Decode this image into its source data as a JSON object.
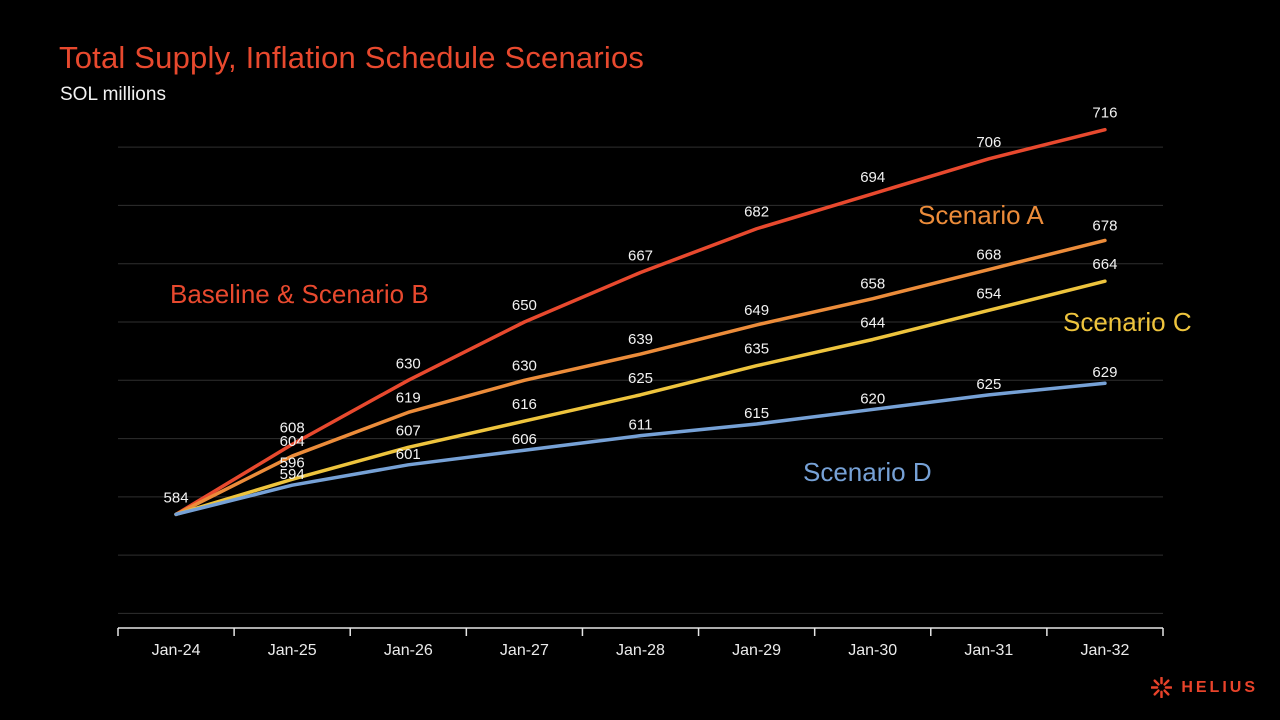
{
  "header": {
    "title": "Total Supply, Inflation Schedule Scenarios",
    "subtitle": "SOL millions"
  },
  "chart_data": {
    "type": "line",
    "title": "Total Supply, Inflation Schedule Scenarios",
    "xlabel": "",
    "ylabel": "SOL millions",
    "categories": [
      "Jan-24",
      "Jan-25",
      "Jan-26",
      "Jan-27",
      "Jan-28",
      "Jan-29",
      "Jan-30",
      "Jan-31",
      "Jan-32"
    ],
    "series": [
      {
        "name": "Baseline & Scenario B",
        "color": "#e8492e",
        "skip_first_label": false,
        "label_dy": -12,
        "values": [
          584,
          608,
          630,
          650,
          667,
          682,
          694,
          706,
          716
        ]
      },
      {
        "name": "Scenario A",
        "color": "#ec8c3a",
        "skip_first_label": true,
        "label_dy": -10,
        "values": [
          584,
          604,
          619,
          630,
          639,
          649,
          658,
          668,
          678
        ]
      },
      {
        "name": "Scenario C",
        "color": "#eec43d",
        "skip_first_label": true,
        "label_dy": -12,
        "values": [
          584,
          596,
          607,
          616,
          625,
          635,
          644,
          654,
          664
        ]
      },
      {
        "name": "Scenario D",
        "color": "#76a1d6",
        "skip_first_label": true,
        "label_dy": -6,
        "values": [
          584,
          594,
          601,
          606,
          611,
          615,
          620,
          625,
          629
        ]
      }
    ],
    "ylim": [
      545,
      720
    ],
    "gridline_values": [
      550,
      570,
      590,
      610,
      630,
      650,
      670,
      690,
      710
    ],
    "grid": "horizontal",
    "legend_position": "inline-annotations",
    "data_labels": true
  },
  "annotations": {
    "baseline_b": {
      "label": "Baseline & Scenario B"
    },
    "scenario_a": {
      "label": "Scenario A"
    },
    "scenario_c": {
      "label": "Scenario C"
    },
    "scenario_d": {
      "label": "Scenario D"
    }
  },
  "footer": {
    "logo_text": "HELIUS"
  },
  "colors": {
    "background": "#000000",
    "title": "#e8492e",
    "brand": "#e8432a",
    "gridline": "#2f2f2f",
    "axis_line": "#e6e6e6",
    "data_label": "#f2f2f2",
    "x_label": "#ebebeb"
  }
}
